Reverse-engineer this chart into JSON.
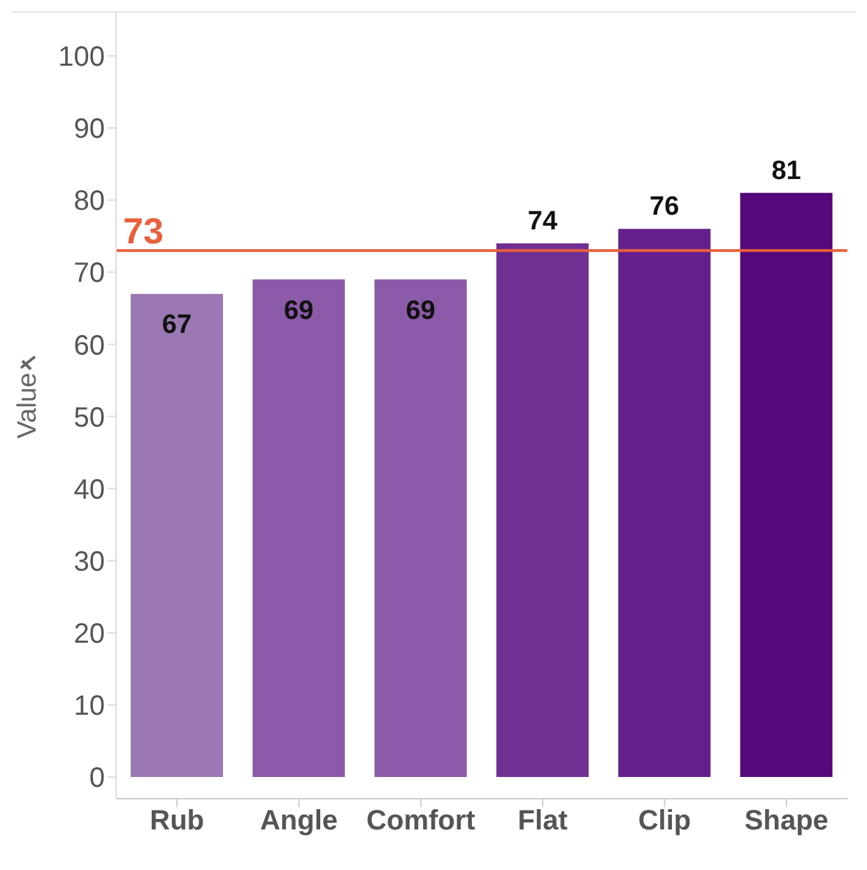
{
  "chart_data": {
    "type": "bar",
    "ylabel": "Value",
    "categories": [
      "Rub",
      "Angle",
      "Comfort",
      "Flat",
      "Clip",
      "Shape"
    ],
    "values": [
      67,
      69,
      69,
      74,
      76,
      81
    ],
    "colors": [
      "#9b77b3",
      "#8b5aa8",
      "#8b5aa8",
      "#702f93",
      "#66208d",
      "#55087a"
    ],
    "ylim": [
      -3,
      106
    ],
    "yticks": [
      0,
      10,
      20,
      30,
      40,
      50,
      60,
      70,
      80,
      90,
      100
    ],
    "grid": false,
    "data_labels": true,
    "ref_lines": [
      {
        "axis": "y",
        "value": 73,
        "label": "73",
        "color": "#e8603c"
      }
    ]
  }
}
